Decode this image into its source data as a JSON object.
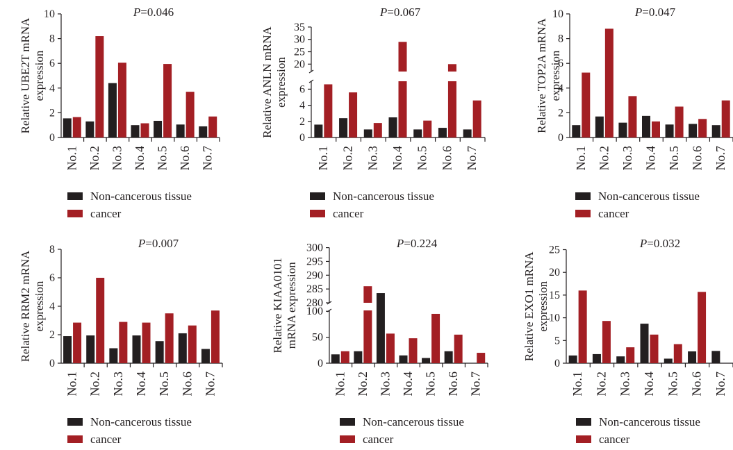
{
  "colors": {
    "noncancer": "#231f20",
    "cancer": "#a31f24",
    "axis": "#231f20"
  },
  "legend": {
    "noncancer_label": "Non-cancerous tissue",
    "cancer_label": "cancer"
  },
  "chart_data": [
    {
      "type": "bar",
      "title": "P=0.046",
      "p_prefix": "P",
      "p_value": "=0.046",
      "ylabel_lines": [
        "Relative UBE2T mRNA",
        "expression"
      ],
      "categories": [
        "No.1",
        "No.2",
        "No.3",
        "No.4",
        "No.5",
        "No.6",
        "No.7"
      ],
      "series": [
        {
          "name": "Non-cancerous tissue",
          "values": [
            1.55,
            1.3,
            4.4,
            1.0,
            1.35,
            1.05,
            0.9
          ]
        },
        {
          "name": "cancer",
          "values": [
            1.65,
            8.2,
            6.05,
            1.15,
            5.95,
            3.7,
            1.7
          ]
        }
      ],
      "ylim": [
        0,
        10
      ],
      "yticks": [
        "0",
        "2",
        "4",
        "6",
        "8",
        "10"
      ],
      "grid": false,
      "legend_position": "bottom"
    },
    {
      "type": "bar",
      "title": "P=0.067",
      "p_prefix": "P",
      "p_value": "=0.067",
      "ylabel_lines": [
        "Relative ANLN mRNA",
        "expression"
      ],
      "categories": [
        "No.1",
        "No.2",
        "No.3",
        "No.4",
        "No.5",
        "No.6",
        "No.7"
      ],
      "series": [
        {
          "name": "Non-cancerous tissue",
          "values": [
            1.6,
            2.4,
            1.0,
            2.5,
            1.0,
            1.2,
            1.0
          ]
        },
        {
          "name": "cancer",
          "values": [
            6.6,
            5.6,
            1.8,
            29.0,
            2.1,
            20.0,
            4.6
          ]
        }
      ],
      "ylim": [
        0,
        35
      ],
      "axis_break": [
        7,
        17
      ],
      "yticks": [
        "0",
        "2",
        "4",
        "6",
        "20",
        "25",
        "30",
        "35"
      ],
      "grid": false,
      "legend_position": "bottom"
    },
    {
      "type": "bar",
      "title": "P=0.047",
      "p_prefix": "P",
      "p_value": "=0.047",
      "ylabel_lines": [
        "Relative TOP2A mRNA",
        "expression"
      ],
      "categories": [
        "No.1",
        "No.2",
        "No.3",
        "No.4",
        "No.5",
        "No.6",
        "No.7"
      ],
      "series": [
        {
          "name": "Non-cancerous tissue",
          "values": [
            1.0,
            1.7,
            1.2,
            1.75,
            1.05,
            1.1,
            1.0
          ]
        },
        {
          "name": "cancer",
          "values": [
            5.25,
            8.8,
            3.35,
            1.3,
            2.5,
            1.5,
            3.0
          ]
        }
      ],
      "ylim": [
        0,
        10
      ],
      "yticks": [
        "0",
        "2",
        "4",
        "6",
        "8",
        "10"
      ],
      "grid": false,
      "legend_position": "bottom"
    },
    {
      "type": "bar",
      "title": "P=0.007",
      "p_prefix": "P",
      "p_value": "=0.007",
      "ylabel_lines": [
        "Relative RRM2 mRNA",
        "expression"
      ],
      "categories": [
        "No.1",
        "No.2",
        "No.3",
        "No.4",
        "No.5",
        "No.6",
        "No.7"
      ],
      "series": [
        {
          "name": "Non-cancerous tissue",
          "values": [
            1.9,
            1.95,
            1.05,
            1.95,
            1.55,
            2.1,
            1.0
          ]
        },
        {
          "name": "cancer",
          "values": [
            2.85,
            6.0,
            2.9,
            2.85,
            3.5,
            2.65,
            3.7
          ]
        }
      ],
      "ylim": [
        0,
        8
      ],
      "yticks": [
        "0",
        "2",
        "4",
        "6",
        "8"
      ],
      "grid": false,
      "legend_position": "bottom"
    },
    {
      "type": "bar",
      "title": "P=0.224",
      "p_prefix": "P",
      "p_value": "=0.224",
      "ylabel_lines": [
        "Relative KIAA0101",
        "mRNA expression"
      ],
      "categories": [
        "No.1",
        "No.2",
        "No.3",
        "No.4",
        "No.5",
        "No.6",
        "No.7"
      ],
      "series": [
        {
          "name": "Non-cancerous tissue",
          "values": [
            17,
            23,
            135,
            15,
            10,
            23,
            0
          ]
        },
        {
          "name": "cancer",
          "values": [
            23,
            286,
            57,
            48,
            95,
            55,
            20
          ]
        }
      ],
      "ylim": [
        0,
        300
      ],
      "axis_break": [
        140,
        280
      ],
      "yticks": [
        "0",
        "50",
        "100",
        "280",
        "285",
        "290",
        "295",
        "300"
      ],
      "grid": false,
      "legend_position": "bottom"
    },
    {
      "type": "bar",
      "title": "P=0.032",
      "p_prefix": "P",
      "p_value": "=0.032",
      "ylabel_lines": [
        "Relative EXO1 mRNA",
        "expression"
      ],
      "categories": [
        "No.1",
        "No.2",
        "No.3",
        "No.4",
        "No.5",
        "No.6",
        "No.7"
      ],
      "series": [
        {
          "name": "Non-cancerous tissue",
          "values": [
            1.7,
            2.0,
            1.5,
            8.7,
            1.0,
            2.6,
            2.7
          ]
        },
        {
          "name": "cancer",
          "values": [
            16.0,
            9.3,
            3.5,
            6.3,
            4.2,
            15.7,
            0
          ]
        }
      ],
      "ylim": [
        0,
        25
      ],
      "yticks": [
        "0",
        "5",
        "10",
        "15",
        "20",
        "25"
      ],
      "grid": false,
      "legend_position": "bottom"
    }
  ]
}
